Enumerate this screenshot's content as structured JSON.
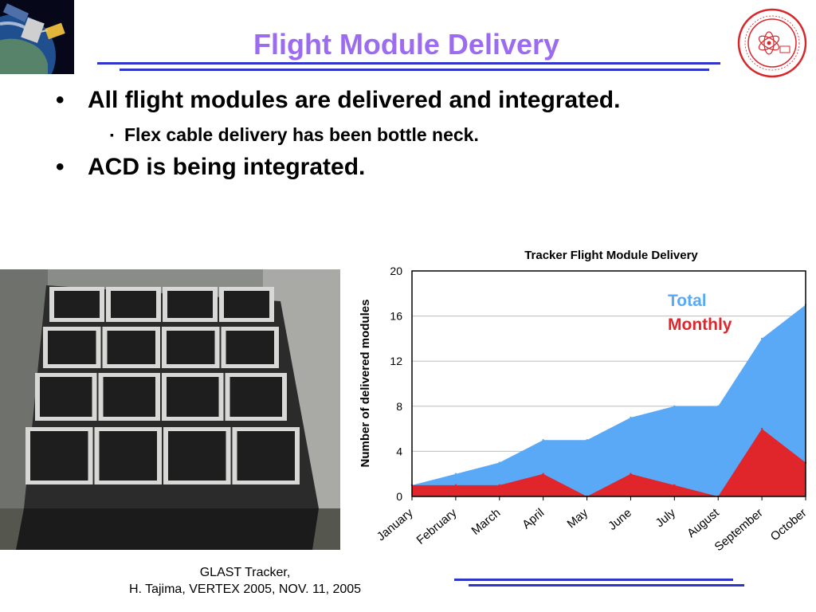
{
  "slide": {
    "title": "Flight Module Delivery",
    "bullets": [
      {
        "level": 1,
        "marker": "•",
        "text": "All flight modules are delivered and integrated."
      },
      {
        "level": 2,
        "marker": "▪",
        "text": "Flex cable delivery has been bottle neck."
      },
      {
        "level": 1,
        "marker": "•",
        "text": "ACD is being integrated."
      }
    ],
    "footer": {
      "line1": "GLAST Tracker,",
      "line2": "H. Tajima, VERTEX 2005, NOV. 11, 2005"
    },
    "colors": {
      "title": "#9b6cf0",
      "rule": "#2f35c9",
      "total": "#5aa9f7",
      "monthly": "#e0262b",
      "logo": "#d9262b"
    }
  },
  "chart_data": {
    "type": "area",
    "title": "Tracker Flight Module Delivery",
    "xlabel": "",
    "ylabel": "Number of delivered modules",
    "categories": [
      "January",
      "February",
      "March",
      "April",
      "May",
      "June",
      "July",
      "August",
      "September",
      "October"
    ],
    "ylim": [
      0,
      20
    ],
    "yticks": [
      0,
      4,
      8,
      12,
      16,
      20
    ],
    "grid": true,
    "legend": "inside top-right",
    "series": [
      {
        "name": "Total",
        "values": [
          1,
          2,
          3,
          5,
          5,
          7,
          8,
          8,
          14,
          17
        ],
        "color": "#5aa9f7"
      },
      {
        "name": "Monthly",
        "values": [
          1,
          1,
          1,
          2,
          0,
          2,
          1,
          0,
          6,
          3
        ],
        "color": "#e0262b"
      }
    ]
  }
}
